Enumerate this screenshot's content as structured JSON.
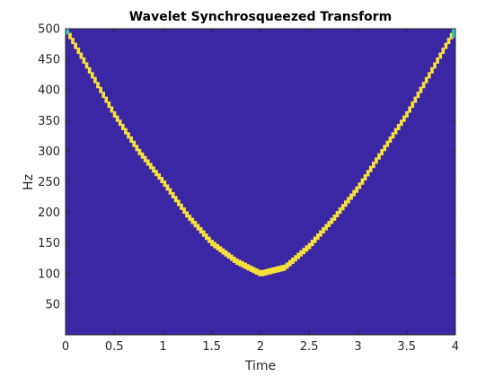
{
  "chart_data": {
    "type": "heatmap",
    "title": "Wavelet Synchrosqueezed Transform",
    "xlabel": "Time",
    "ylabel": "Hz",
    "xlim": [
      0,
      4
    ],
    "ylim": [
      0,
      500
    ],
    "x_ticks": [
      0,
      0.5,
      1,
      1.5,
      2,
      2.5,
      3,
      3.5,
      4
    ],
    "x_tick_labels": [
      "0",
      "0.5",
      "1",
      "1.5",
      "2",
      "2.5",
      "3",
      "3.5",
      "4"
    ],
    "y_ticks": [
      50,
      100,
      150,
      200,
      250,
      300,
      350,
      400,
      450,
      500
    ],
    "y_tick_labels": [
      "50",
      "100",
      "150",
      "200",
      "250",
      "300",
      "350",
      "400",
      "450",
      "500"
    ],
    "grid": false,
    "colors": {
      "background": "#3b27a3",
      "ridge": "#f5e13a",
      "edge_cyan": "#35c6c0"
    },
    "series": [
      {
        "x": [
          0,
          0.25,
          0.5,
          0.75,
          1,
          1.25,
          1.5,
          1.75,
          2,
          2.25,
          2.5,
          2.75,
          3,
          3.25,
          3.5,
          3.75,
          4
        ],
        "y": [
          500,
          430,
          360,
          300,
          250,
          195,
          150,
          120,
          100,
          110,
          145,
          190,
          240,
          300,
          360,
          430,
          500
        ]
      }
    ]
  }
}
